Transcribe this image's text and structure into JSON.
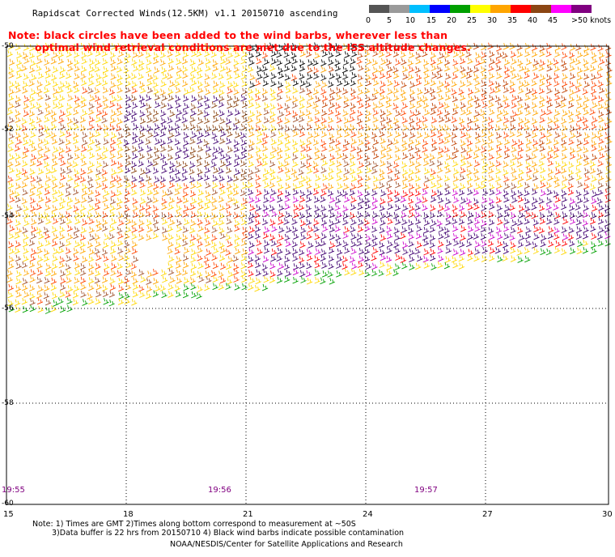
{
  "title": "Rapidscat Corrected Winds(12.5KM) v1.1 20150710 ascending",
  "note_line1": "Note: black circles have been added to the wind barbs, wherever less than",
  "note_line2": "optimal wind retrieval conditions are met due to the ISS altitude changes.",
  "legend": {
    "labels": [
      "0",
      "5",
      "10",
      "15",
      "20",
      "25",
      "30",
      "35",
      "40",
      "45",
      ">50 knots"
    ],
    "colors": [
      "#000000",
      "#7f7f7f",
      "#00bfff",
      "#0000ff",
      "#00a000",
      "#ffff00",
      "#ffa500",
      "#ff0000",
      "#8b4513",
      "#ff00ff",
      "#800080",
      "#400070"
    ]
  },
  "axes": {
    "x_ticks": [
      "15",
      "18",
      "21",
      "24",
      "27",
      "30"
    ],
    "y_ticks": [
      "-50",
      "-52",
      "-54",
      "-56",
      "-58",
      "-60"
    ]
  },
  "times": [
    "19:55",
    "19:56",
    "19:57"
  ],
  "footer": {
    "line1": "Note: 1) Times are GMT 2)Times along bottom correspond to measurement at ~50S",
    "line2": "3)Data buffer is 22 hrs from 20150710 4) Black wind barbs indicate possible contamination",
    "line3": "NOAA/NESDIS/Center for Satellite Applications and Research"
  }
}
